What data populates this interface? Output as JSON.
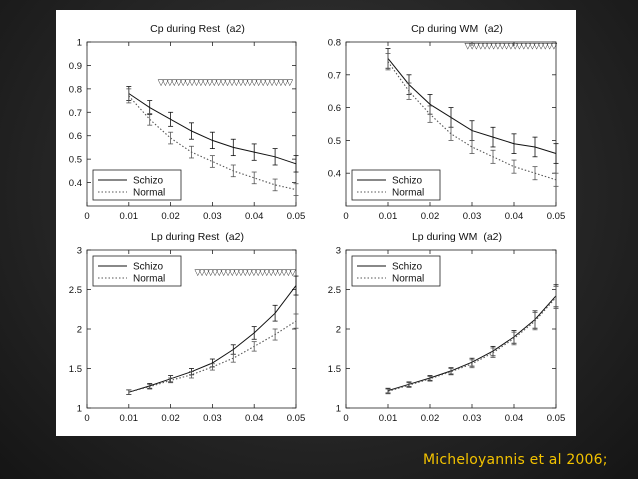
{
  "caption": "Micheloyannis et al 2006;",
  "chart_data": [
    {
      "type": "line",
      "title": "Cp during Rest",
      "title_suffix": "(a2)",
      "xlim": [
        0,
        0.05
      ],
      "ylim": [
        0.3,
        1
      ],
      "xticks": [
        "0",
        "0.01",
        "0.02",
        "0.03",
        "0.04",
        "0.05"
      ],
      "xtick_values": [
        0,
        0.01,
        0.02,
        0.03,
        0.04,
        0.05
      ],
      "yticks": [
        "0.4",
        "0.5",
        "0.6",
        "0.7",
        "0.8",
        "0.9",
        "1"
      ],
      "ytick_values": [
        0.4,
        0.5,
        0.6,
        0.7,
        0.8,
        0.9,
        1
      ],
      "x": [
        0.01,
        0.015,
        0.02,
        0.025,
        0.03,
        0.035,
        0.04,
        0.045,
        0.05
      ],
      "series": [
        {
          "name": "Schizo",
          "style": "solid",
          "values": [
            0.78,
            0.72,
            0.67,
            0.62,
            0.58,
            0.55,
            0.53,
            0.51,
            0.48
          ],
          "error": [
            0.03,
            0.03,
            0.03,
            0.035,
            0.035,
            0.035,
            0.035,
            0.035,
            0.035
          ]
        },
        {
          "name": "Normal",
          "style": "dotted",
          "values": [
            0.77,
            0.67,
            0.59,
            0.53,
            0.49,
            0.45,
            0.42,
            0.39,
            0.37
          ],
          "error": [
            0.03,
            0.025,
            0.025,
            0.025,
            0.025,
            0.025,
            0.025,
            0.025,
            0.025
          ]
        }
      ],
      "significance_markers": {
        "symbol": "▽",
        "x_from": 0.0177,
        "x_to": 0.0485,
        "at_y": 0.83
      },
      "legend": "bottom-left"
    },
    {
      "type": "line",
      "title": "Cp during WM",
      "title_suffix": "(a2)",
      "xlim": [
        0,
        0.05
      ],
      "ylim": [
        0.3,
        0.8
      ],
      "xticks": [
        "0",
        "0.01",
        "0.02",
        "0.03",
        "0.04",
        "0.05"
      ],
      "xtick_values": [
        0,
        0.01,
        0.02,
        0.03,
        0.04,
        0.05
      ],
      "yticks": [
        "0.4",
        "0.5",
        "0.6",
        "0.7",
        "0.8"
      ],
      "ytick_values": [
        0.4,
        0.5,
        0.6,
        0.7,
        0.8
      ],
      "x": [
        0.01,
        0.015,
        0.02,
        0.025,
        0.03,
        0.035,
        0.04,
        0.045,
        0.05
      ],
      "series": [
        {
          "name": "Schizo",
          "style": "solid",
          "values": [
            0.75,
            0.67,
            0.61,
            0.57,
            0.53,
            0.51,
            0.49,
            0.48,
            0.46
          ],
          "error": [
            0.03,
            0.03,
            0.03,
            0.03,
            0.03,
            0.03,
            0.03,
            0.03,
            0.03
          ]
        },
        {
          "name": "Normal",
          "style": "dotted",
          "values": [
            0.74,
            0.65,
            0.58,
            0.52,
            0.48,
            0.45,
            0.42,
            0.4,
            0.38
          ],
          "error": [
            0.025,
            0.025,
            0.025,
            0.02,
            0.02,
            0.02,
            0.02,
            0.02,
            0.02
          ]
        }
      ],
      "significance_markers": {
        "symbol": "▽",
        "x_from": 0.029,
        "x_to": 0.0495,
        "at_y": 0.79
      },
      "legend": "bottom-left"
    },
    {
      "type": "line",
      "title": "Lp during Rest",
      "title_suffix": "(a2)",
      "xlim": [
        0,
        0.05
      ],
      "ylim": [
        1,
        3
      ],
      "xticks": [
        "0",
        "0.01",
        "0.02",
        "0.03",
        "0.04",
        "0.05"
      ],
      "xtick_values": [
        0,
        0.01,
        0.02,
        0.03,
        0.04,
        0.05
      ],
      "yticks": [
        "1",
        "1.5",
        "2",
        "2.5",
        "3"
      ],
      "ytick_values": [
        1,
        1.5,
        2,
        2.5,
        3
      ],
      "x": [
        0.01,
        0.015,
        0.02,
        0.025,
        0.03,
        0.035,
        0.04,
        0.045,
        0.05
      ],
      "series": [
        {
          "name": "Schizo",
          "style": "solid",
          "values": [
            1.2,
            1.28,
            1.37,
            1.46,
            1.57,
            1.74,
            1.95,
            2.2,
            2.55
          ],
          "error": [
            0.03,
            0.03,
            0.04,
            0.04,
            0.05,
            0.06,
            0.08,
            0.1,
            0.12
          ]
        },
        {
          "name": "Normal",
          "style": "dotted",
          "values": [
            1.2,
            1.27,
            1.35,
            1.42,
            1.52,
            1.63,
            1.78,
            1.93,
            2.1
          ],
          "error": [
            0.03,
            0.03,
            0.03,
            0.04,
            0.04,
            0.05,
            0.06,
            0.07,
            0.09
          ]
        }
      ],
      "significance_markers": {
        "symbol": "▽",
        "x_from": 0.0265,
        "x_to": 0.0492,
        "at_y": 2.72
      },
      "legend": "top-left"
    },
    {
      "type": "line",
      "title": "Lp during WM",
      "title_suffix": "(a2)",
      "xlim": [
        0,
        0.05
      ],
      "ylim": [
        1,
        3
      ],
      "xticks": [
        "0",
        "0.01",
        "0.02",
        "0.03",
        "0.04",
        "0.05"
      ],
      "xtick_values": [
        0,
        0.01,
        0.02,
        0.03,
        0.04,
        0.05
      ],
      "yticks": [
        "1",
        "1.5",
        "2",
        "2.5",
        "3"
      ],
      "ytick_values": [
        1,
        1.5,
        2,
        2.5,
        3
      ],
      "x": [
        0.01,
        0.015,
        0.02,
        0.025,
        0.03,
        0.035,
        0.04,
        0.045,
        0.05
      ],
      "series": [
        {
          "name": "Schizo",
          "style": "solid",
          "values": [
            1.22,
            1.3,
            1.38,
            1.47,
            1.58,
            1.72,
            1.9,
            2.12,
            2.42
          ],
          "error": [
            0.03,
            0.03,
            0.03,
            0.04,
            0.05,
            0.06,
            0.08,
            0.11,
            0.14
          ]
        },
        {
          "name": "Normal",
          "style": "dotted",
          "values": [
            1.21,
            1.29,
            1.37,
            1.46,
            1.56,
            1.7,
            1.88,
            2.1,
            2.4
          ],
          "error": [
            0.03,
            0.03,
            0.03,
            0.04,
            0.05,
            0.06,
            0.08,
            0.11,
            0.14
          ]
        }
      ],
      "significance_markers": null,
      "legend": "top-left"
    }
  ]
}
